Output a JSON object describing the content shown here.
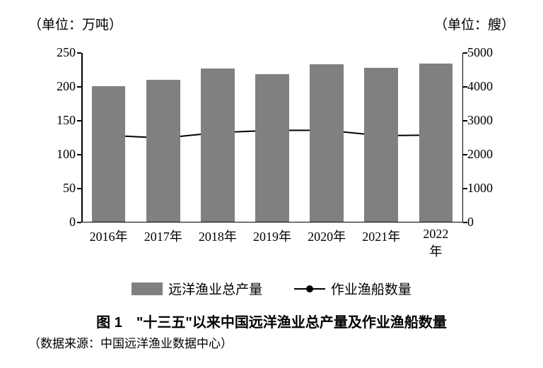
{
  "chart": {
    "type": "bar+line",
    "unit_left_label": "（单位：万吨）",
    "unit_right_label": "（单位：艘）",
    "categories": [
      "2016年",
      "2017年",
      "2018年",
      "2019年",
      "2020年",
      "2021年",
      "2022年"
    ],
    "bars": {
      "values_left_axis": [
        200,
        209,
        226,
        218,
        232,
        227,
        233
      ],
      "color": "#808080",
      "bar_width_frac": 0.62
    },
    "line": {
      "values_right_axis": [
        2570,
        2490,
        2650,
        2720,
        2720,
        2560,
        2580
      ],
      "stroke": "#000000",
      "marker_fill": "#000000",
      "marker_radius": 5,
      "stroke_width": 2
    },
    "y_left": {
      "min": 0,
      "max": 250,
      "step": 50
    },
    "y_right": {
      "min": 0,
      "max": 5000,
      "step": 1000
    },
    "plot_bg": "#ffffff",
    "axis_color": "#000000",
    "font_size_tick": 18,
    "font_size_unit": 19
  },
  "legend": {
    "bar_label": "远洋渔业总产量",
    "line_label": "作业渔船数量"
  },
  "caption": "图 1　\"十三五\"以来中国远洋渔业总产量及作业渔船数量",
  "source": "（数据来源：中国远洋渔业数据中心）"
}
